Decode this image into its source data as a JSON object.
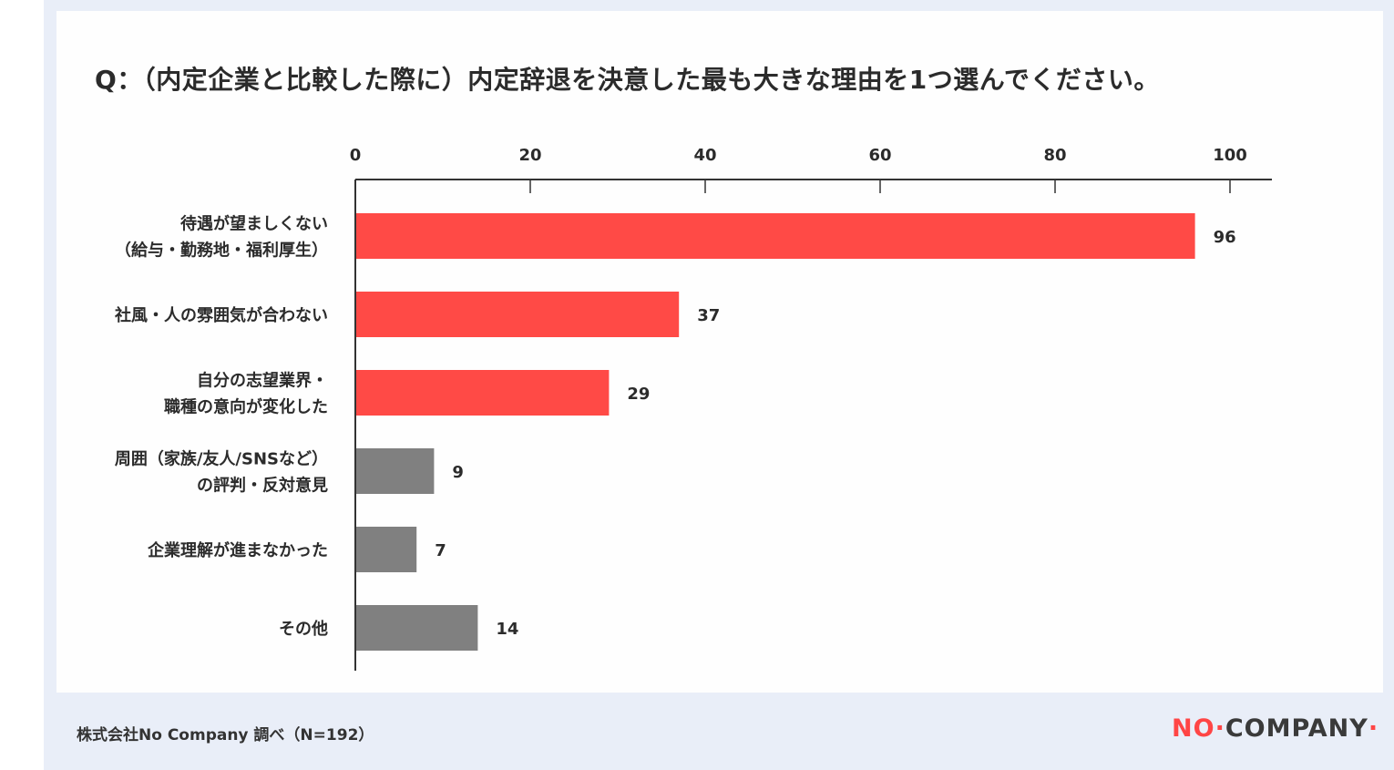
{
  "title": "Q：（内定企業と比較した際に）内定辞退を決意した最も大きな理由を1つ選んでください。",
  "footer_note": "株式会社No Company 調べ（N=192）",
  "logo": {
    "no": "NO",
    "rest": "COMPANY",
    "accent_color": "#ff4a46"
  },
  "chart_data": {
    "type": "bar",
    "orientation": "horizontal",
    "categories": [
      [
        "待遇が望ましくない",
        "（給与・勤務地・福利厚生）"
      ],
      [
        "社風・人の雰囲気が合わない"
      ],
      [
        "自分の志望業界・",
        "職種の意向が変化した"
      ],
      [
        "周囲（家族/友人/SNSなど）",
        "の評判・反対意見"
      ],
      [
        "企業理解が進まなかった"
      ],
      [
        "その他"
      ]
    ],
    "values": [
      96,
      37,
      29,
      9,
      7,
      14
    ],
    "colors": [
      "#ff4a46",
      "#ff4a46",
      "#ff4a46",
      "#808080",
      "#808080",
      "#808080"
    ],
    "xlim": [
      0,
      100
    ],
    "xticks": [
      0,
      20,
      40,
      60,
      80,
      100
    ],
    "xaxis_position": "top",
    "grid": false
  }
}
